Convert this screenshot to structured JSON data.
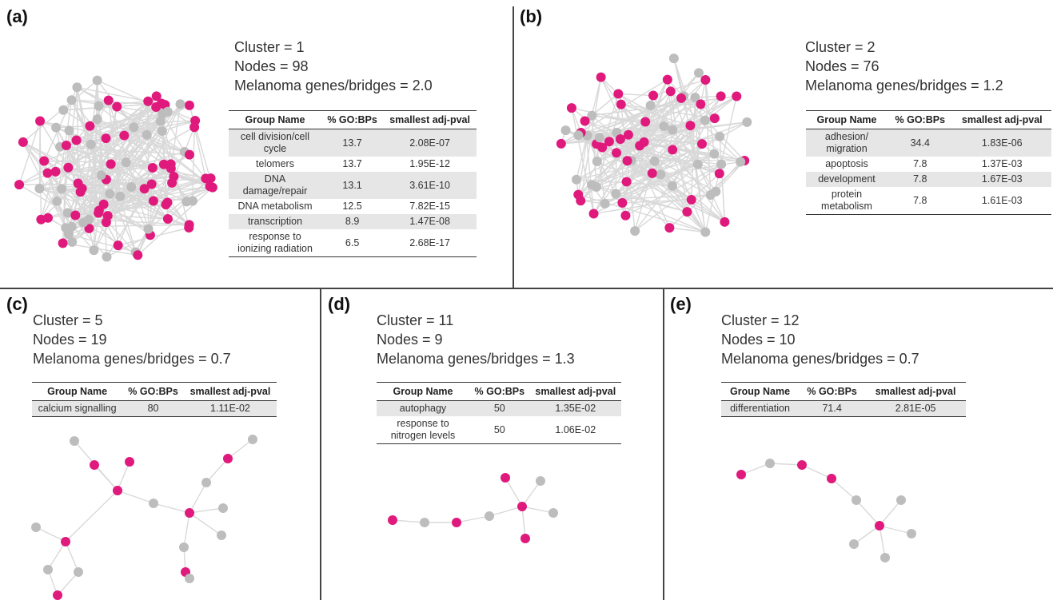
{
  "colors": {
    "melanoma": "#e0197d",
    "other": "#bdbdbd",
    "edge": "#d9d9d9",
    "divider": "#444444"
  },
  "panels": [
    {
      "label": "(a)",
      "cluster": "Cluster = 1",
      "nodes": "Nodes  = 98",
      "ratio": "Melanoma genes/bridges = 2.0",
      "headers": [
        "Group Name",
        "% GO:BPs",
        "smallest adj-pval"
      ],
      "rows": [
        {
          "name": "cell division/cell cycle",
          "pct": "13.7",
          "pval": "2.08E-07"
        },
        {
          "name": "telomers",
          "pct": "13.7",
          "pval": "1.95E-12"
        },
        {
          "name": "DNA damage/repair",
          "pct": "13.1",
          "pval": "3.61E-10"
        },
        {
          "name": "DNA metabolism",
          "pct": "12.5",
          "pval": "7.82E-15"
        },
        {
          "name": "transcription",
          "pct": "8.9",
          "pval": "1.47E-08"
        },
        {
          "name": "response to ionizing radiation",
          "pct": "6.5",
          "pval": "2.68E-17"
        }
      ]
    },
    {
      "label": "(b)",
      "cluster": "Cluster = 2",
      "nodes": "Nodes  = 76",
      "ratio": "Melanoma genes/bridges = 1.2",
      "headers": [
        "Group Name",
        "% GO:BPs",
        "smallest adj-pval"
      ],
      "rows": [
        {
          "name": "adhesion/ migration",
          "pct": "34.4",
          "pval": "1.83E-06"
        },
        {
          "name": "apoptosis",
          "pct": "7.8",
          "pval": "1.37E-03"
        },
        {
          "name": "development",
          "pct": "7.8",
          "pval": "1.67E-03"
        },
        {
          "name": "protein metabolism",
          "pct": "7.8",
          "pval": "1.61E-03"
        }
      ]
    },
    {
      "label": "(c)",
      "cluster": "Cluster = 5",
      "nodes": "Nodes  = 19",
      "ratio": "Melanoma genes/bridges = 0.7",
      "headers": [
        "Group Name",
        "% GO:BPs",
        "smallest adj-pval"
      ],
      "rows": [
        {
          "name": "calcium signalling",
          "pct": "80",
          "pval": "1.11E-02"
        }
      ]
    },
    {
      "label": "(d)",
      "cluster": "Cluster = 11",
      "nodes": "Nodes  = 9",
      "ratio": "Melanoma genes/bridges = 1.3",
      "headers": [
        "Group Name",
        "% GO:BPs",
        "smallest adj-pval"
      ],
      "rows": [
        {
          "name": "autophagy",
          "pct": "50",
          "pval": "1.35E-02"
        },
        {
          "name": "response to nitrogen levels",
          "pct": "50",
          "pval": "1.06E-02"
        }
      ]
    },
    {
      "label": "(e)",
      "cluster": "Cluster = 12",
      "nodes": "Nodes  = 10",
      "ratio": "Melanoma genes/bridges = 0.7",
      "headers": [
        "Group Name",
        "% GO:BPs",
        "smallest adj-pval"
      ],
      "rows": [
        {
          "name": "differentiation",
          "pct": "71.4",
          "pval": "2.81E-05"
        }
      ]
    }
  ]
}
